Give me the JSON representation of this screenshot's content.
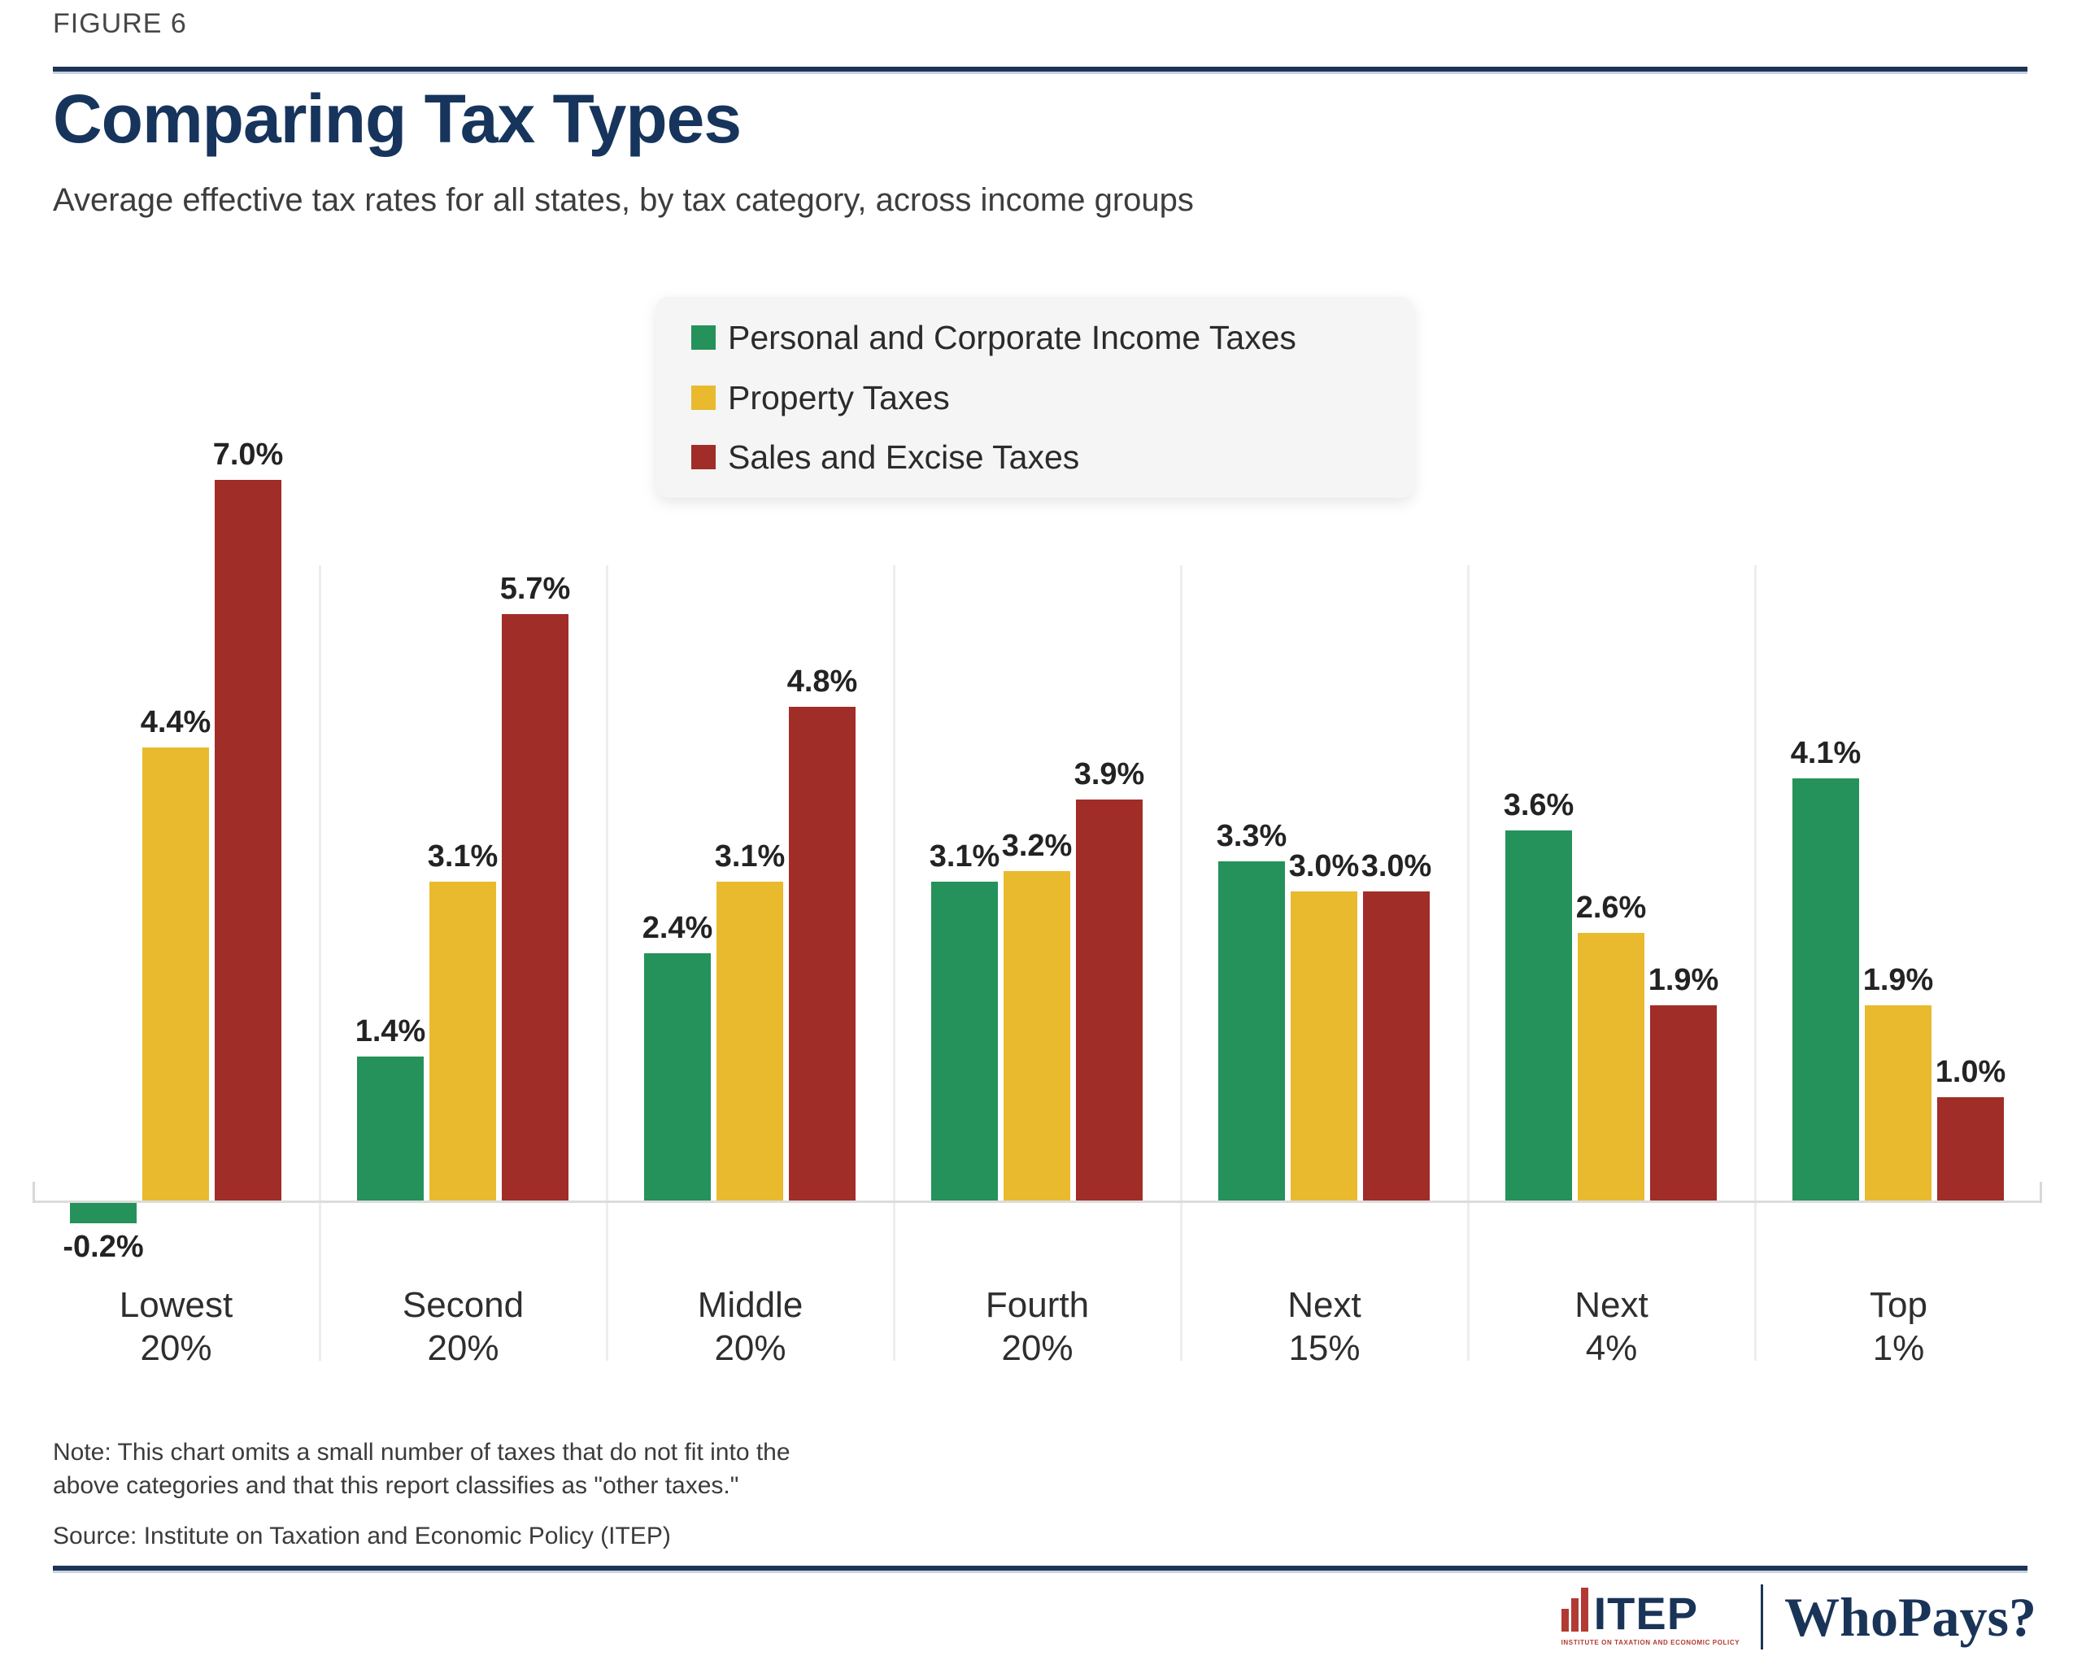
{
  "figure_label": "FIGURE 6",
  "title": "Comparing Tax Types",
  "subtitle": "Average effective tax rates for all states, by tax category, across income groups",
  "chart_data": {
    "type": "bar",
    "title": "Comparing Tax Types",
    "subtitle": "Average effective tax rates for all states, by tax category, across income groups",
    "unit": "%",
    "legend_position": "top",
    "grid": "vertical group separators, baseline only",
    "ylim": [
      -0.5,
      7.5
    ],
    "categories": [
      "Lowest 20%",
      "Second 20%",
      "Middle 20%",
      "Fourth 20%",
      "Next 15%",
      "Next 4%",
      "Top 1%"
    ],
    "category_lines": [
      [
        "Lowest",
        "20%"
      ],
      [
        "Second",
        "20%"
      ],
      [
        "Middle",
        "20%"
      ],
      [
        "Fourth",
        "20%"
      ],
      [
        "Next",
        "15%"
      ],
      [
        "Next",
        "4%"
      ],
      [
        "Top",
        "1%"
      ]
    ],
    "series": [
      {
        "name": "Personal and Corporate Income Taxes",
        "color": "#24925a",
        "values": [
          -0.2,
          1.4,
          2.4,
          3.1,
          3.3,
          3.6,
          4.1
        ],
        "labels": [
          "-0.2%",
          "1.4%",
          "2.4%",
          "3.1%",
          "3.3%",
          "3.6%",
          "4.1%"
        ]
      },
      {
        "name": "Property Taxes",
        "color": "#e9ba2e",
        "values": [
          4.4,
          3.1,
          3.1,
          3.2,
          3.0,
          2.6,
          1.9
        ],
        "labels": [
          "4.4%",
          "3.1%",
          "3.1%",
          "3.2%",
          "3.0%",
          "2.6%",
          "1.9%"
        ]
      },
      {
        "name": "Sales and Excise Taxes",
        "color": "#a02d28",
        "values": [
          7.0,
          5.7,
          4.8,
          3.9,
          3.0,
          1.9,
          1.0
        ],
        "labels": [
          "7.0%",
          "5.7%",
          "4.8%",
          "3.9%",
          "3.0%",
          "1.9%",
          "1.0%"
        ]
      }
    ]
  },
  "note": {
    "lines": [
      "Note: This chart omits a small number of taxes that do not fit into the",
      "above categories and that this report classifies as \"other taxes.\""
    ]
  },
  "source": "Source: Institute on Taxation and Economic Policy (ITEP)",
  "footer": {
    "itep_text": "ITEP",
    "itep_caption": "INSTITUTE ON TAXATION AND ECONOMIC POLICY",
    "brand": "WhoPays?"
  },
  "colors": {
    "navy": "#1a3458",
    "title_navy": "#16345c",
    "logo_red": "#b23a34",
    "income_green": "#24925a",
    "property_yellow": "#e9ba2e",
    "sales_red": "#a02d28",
    "baseline_gray": "#dcdcdc",
    "separator_gray": "#ededed",
    "legend_bg": "#f5f5f6"
  }
}
